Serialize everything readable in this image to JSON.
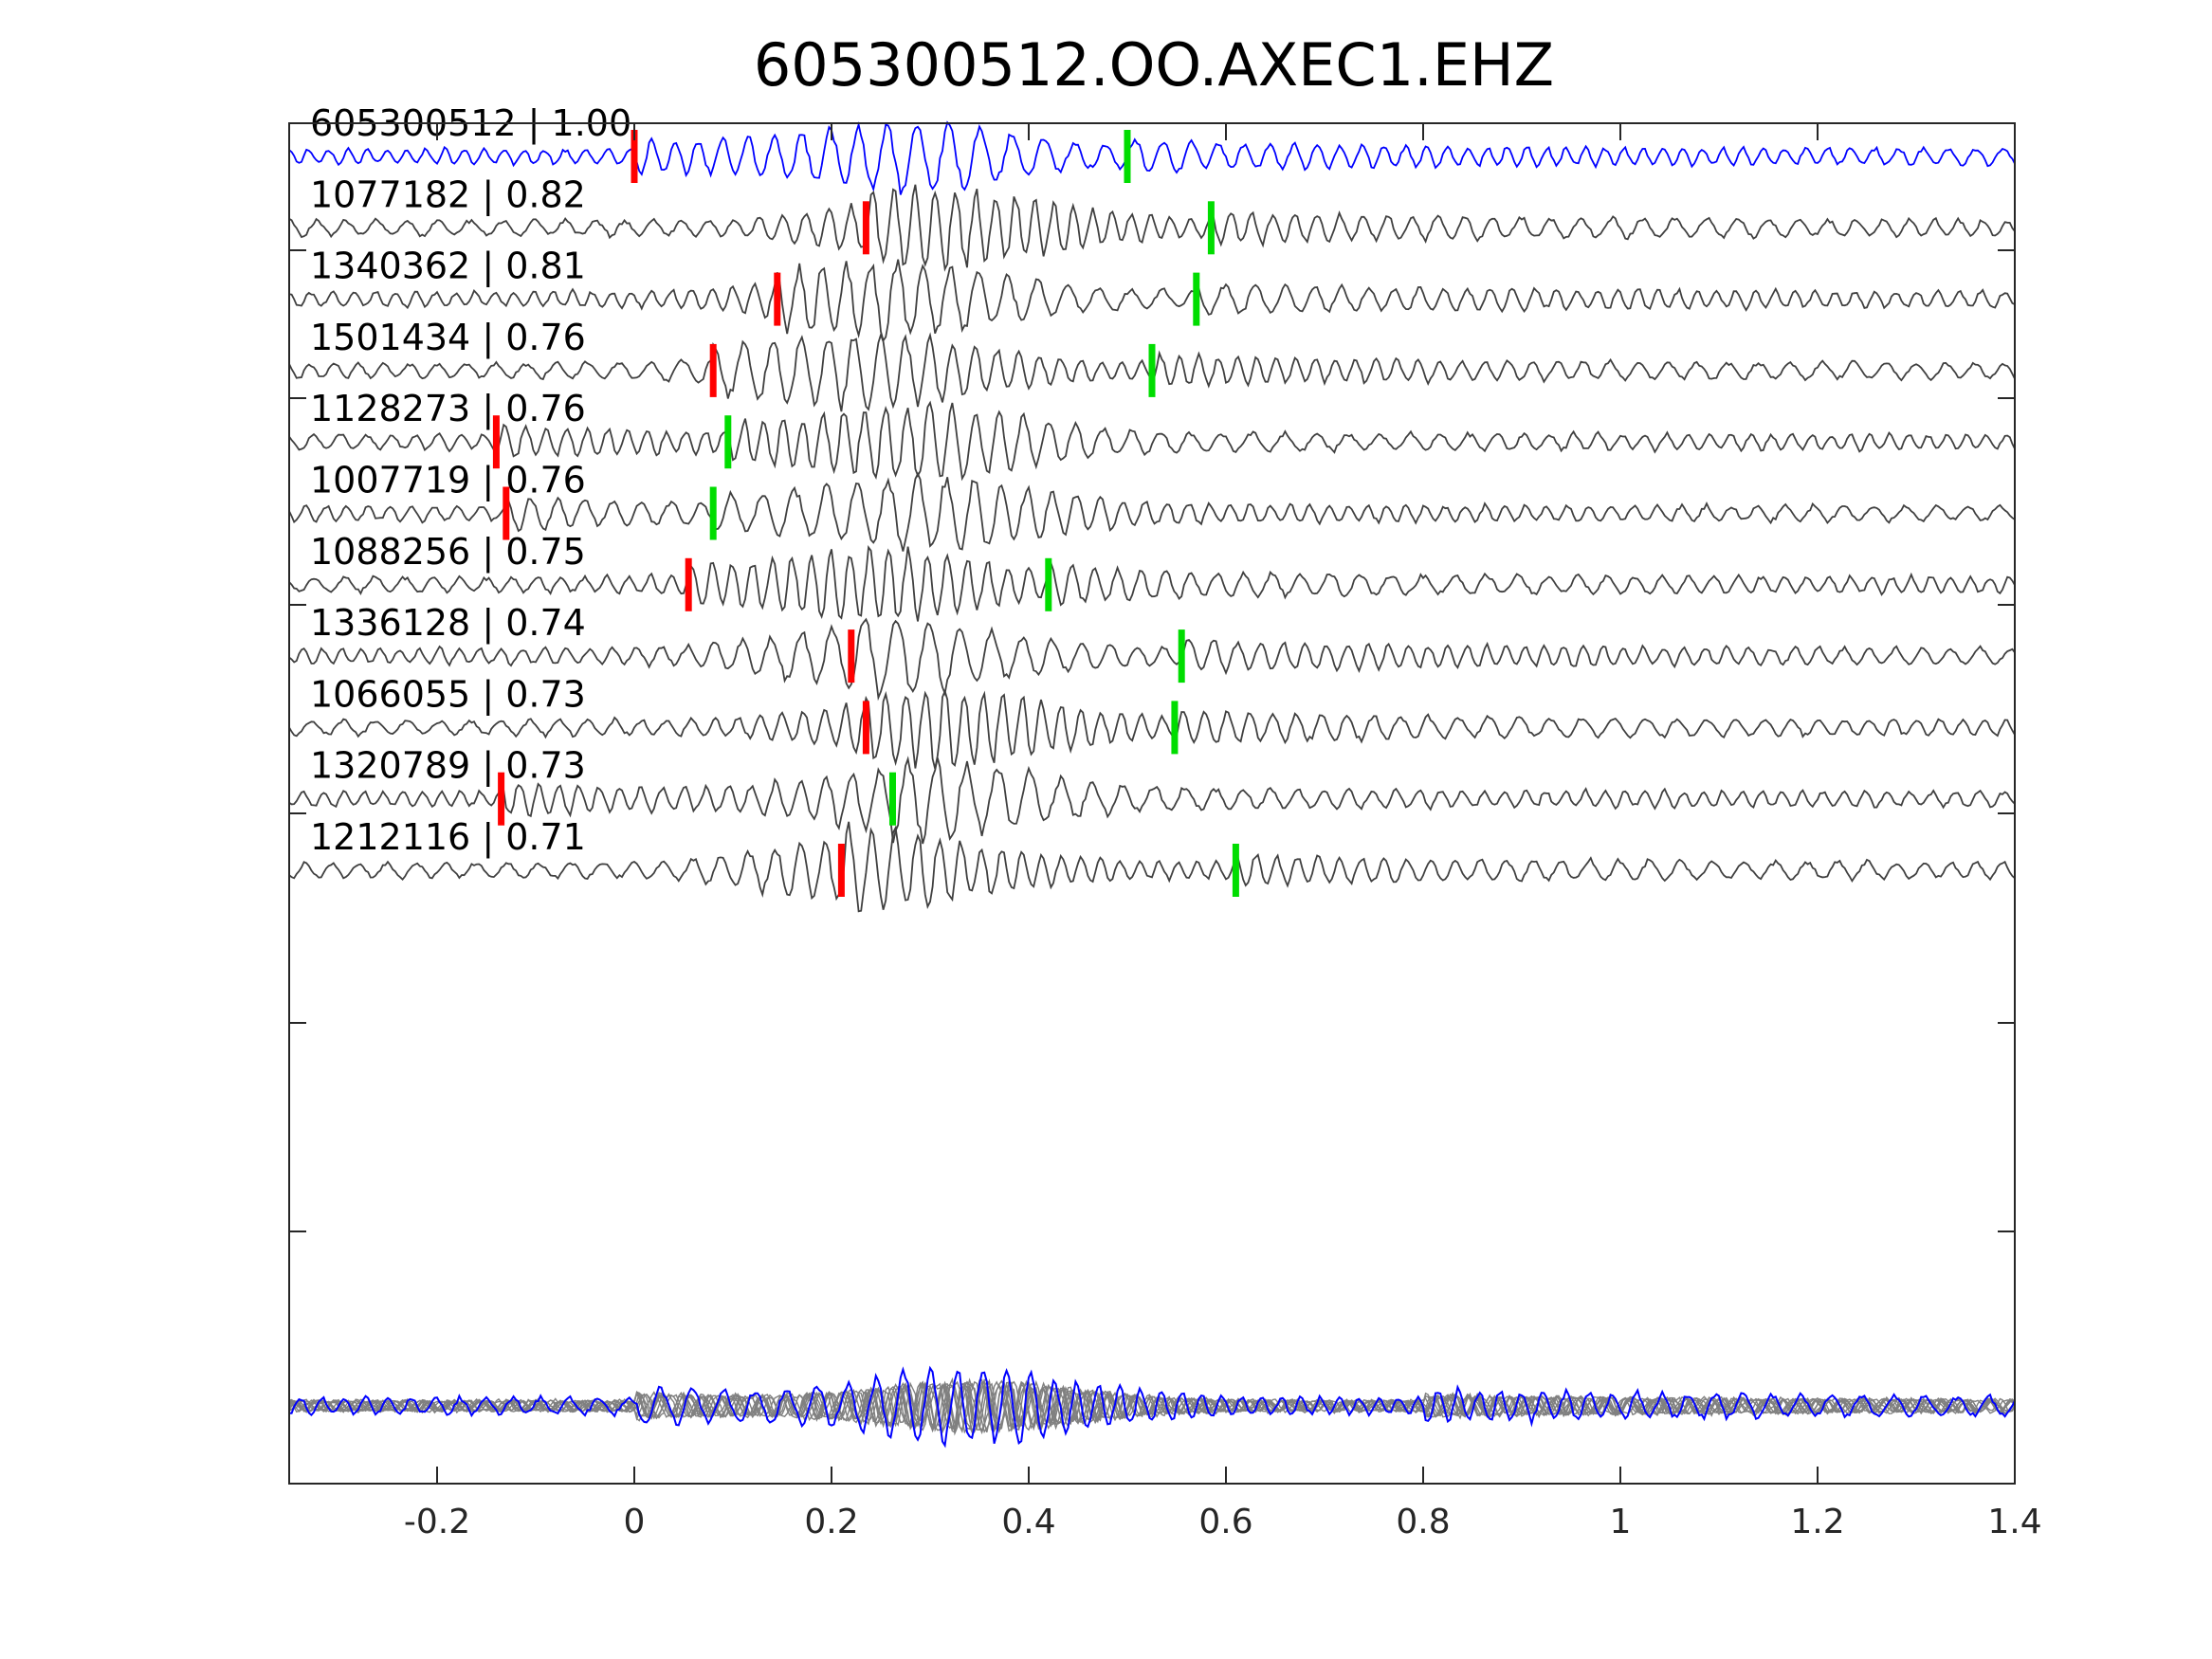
{
  "figure": {
    "title": "605300512.OO.AXEC1.EHZ"
  },
  "colors": {
    "template": "#0000ff",
    "detection": "#404040",
    "overlay": "#808080",
    "p_pick": "#ff0000",
    "s_pick": "#00dd00",
    "axis": "#262626"
  },
  "chart_data": {
    "type": "line",
    "title": "605300512.OO.AXEC1.EHZ",
    "xlabel": "",
    "ylabel": "",
    "xlim": [
      -0.35,
      1.4
    ],
    "xticks": [
      -0.2,
      0,
      0.2,
      0.4,
      0.6,
      0.8,
      1,
      1.2,
      1.4
    ],
    "xtick_labels": [
      "-0.2",
      "0",
      "0.2",
      "0.4",
      "0.6",
      "0.8",
      "1",
      "1.2",
      "1.4"
    ],
    "grid": false,
    "legend": "none",
    "traces": [
      {
        "id": "605300512",
        "cc": "1.00",
        "p_pick": 0.0,
        "s_pick": 0.5
      },
      {
        "id": "1077182",
        "cc": "0.82",
        "p_pick": 0.235,
        "s_pick": 0.585
      },
      {
        "id": "1340362",
        "cc": "0.81",
        "p_pick": 0.145,
        "s_pick": 0.57
      },
      {
        "id": "1501434",
        "cc": "0.76",
        "p_pick": 0.08,
        "s_pick": 0.525
      },
      {
        "id": "1128273",
        "cc": "0.76",
        "p_pick": -0.14,
        "s_pick": 0.095
      },
      {
        "id": "1007719",
        "cc": "0.76",
        "p_pick": -0.13,
        "s_pick": 0.08
      },
      {
        "id": "1088256",
        "cc": "0.75",
        "p_pick": 0.055,
        "s_pick": 0.42
      },
      {
        "id": "1336128",
        "cc": "0.74",
        "p_pick": 0.22,
        "s_pick": 0.555
      },
      {
        "id": "1066055",
        "cc": "0.73",
        "p_pick": 0.235,
        "s_pick": 0.548
      },
      {
        "id": "1320789",
        "cc": "0.73",
        "p_pick": -0.135,
        "s_pick": 0.262
      },
      {
        "id": "1212116",
        "cc": "0.71",
        "p_pick": 0.21,
        "s_pick": 0.61
      }
    ],
    "overlay": {
      "description_series": "stack of all detection waveforms (gray) with template (blue)"
    }
  }
}
